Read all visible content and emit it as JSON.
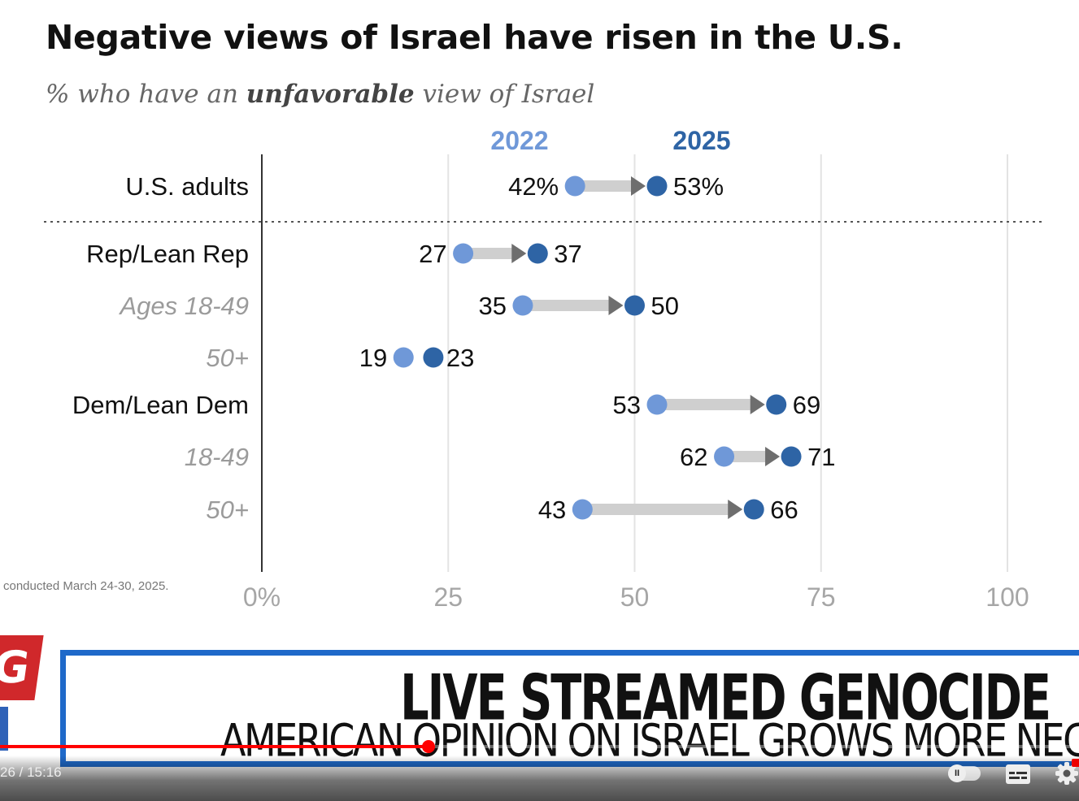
{
  "chart_data": {
    "type": "dumbbell",
    "title": "Negative views of Israel have risen in the U.S.",
    "subtitle_parts": [
      "% who have an ",
      "unfavorable",
      " view of Israel"
    ],
    "legend": [
      "2022",
      "2025"
    ],
    "xlim": [
      0,
      100
    ],
    "x_ticks": [
      "0%",
      "25",
      "50",
      "75",
      "100"
    ],
    "grid": true,
    "colors": {
      "2022": "#6f98d8",
      "2025": "#2e64a5",
      "arrow": "#cfcfcf",
      "arrowhead": "#6e6e6e"
    },
    "rows": [
      {
        "label": "U.S. adults",
        "style": "main",
        "v2022": 42,
        "v2025": 53,
        "label2022": "42%",
        "label2025": "53%"
      },
      {
        "label": "Rep/Lean Rep",
        "style": "main",
        "v2022": 27,
        "v2025": 37,
        "label2022": "27",
        "label2025": "37"
      },
      {
        "label": "Ages 18-49",
        "style": "sub",
        "v2022": 35,
        "v2025": 50,
        "label2022": "35",
        "label2025": "50"
      },
      {
        "label": "50+",
        "style": "sub",
        "v2022": 19,
        "v2025": 23,
        "label2022": "19",
        "label2025": "23"
      },
      {
        "label": "Dem/Lean Dem",
        "style": "main",
        "v2022": 53,
        "v2025": 69,
        "label2022": "53",
        "label2025": "69"
      },
      {
        "label": "18-49",
        "style": "sub",
        "v2022": 62,
        "v2025": 71,
        "label2022": "62",
        "label2025": "71"
      },
      {
        "label": "50+",
        "style": "sub",
        "v2022": 43,
        "v2025": 66,
        "label2022": "43",
        "label2025": "66"
      }
    ]
  },
  "source_note": "conducted March 24-30, 2025.",
  "banner": {
    "logo_letter": "G",
    "headline": "LIVE STREAMED GENOCIDE",
    "subline": "AMERICAN OPINION ON ISRAEL GROWS MORE NEGATIVE"
  },
  "player": {
    "time": "26 / 15:16",
    "progress_fraction": 0.397,
    "autoplay_symbol": "II",
    "icons": [
      "captions-icon",
      "settings-icon"
    ]
  }
}
